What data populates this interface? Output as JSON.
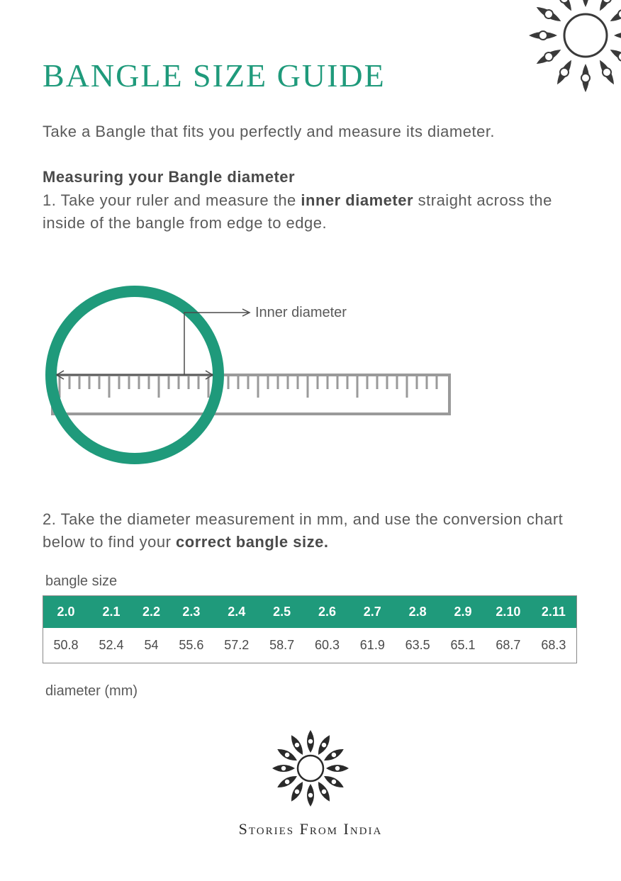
{
  "colors": {
    "accent": "#1f9a7b",
    "text": "#5a5a5a",
    "text_dark": "#4a4a4a",
    "ruler": "#9a9a9a",
    "white": "#ffffff",
    "table_border": "#888888",
    "ornament": "#3a3a3a"
  },
  "title": "BANGLE SIZE GUIDE",
  "intro": "Take a Bangle that fits you perfectly and measure its diameter.",
  "subhead": "Measuring your Bangle diameter",
  "step1_prefix": "1. Take your ruler and measure the ",
  "step1_bold": "inner diameter",
  "step1_suffix": " straight across the inside of the bangle from edge to edge.",
  "diagram": {
    "label": "Inner diameter",
    "ring_stroke_width": 16,
    "ring_color": "#1f9a7b",
    "ruler_color": "#9a9a9a"
  },
  "step2_prefix": "2. Take the diameter measurement in mm, and use the conversion chart below to find your ",
  "step2_bold": "correct bangle size.",
  "table": {
    "caption_top": "bangle size",
    "caption_bottom": "diameter (mm)",
    "header_bg": "#1f9a7b",
    "header_fg": "#ffffff",
    "sizes": [
      "2.0",
      "2.1",
      "2.2",
      "2.3",
      "2.4",
      "2.5",
      "2.6",
      "2.7",
      "2.8",
      "2.9",
      "2.10",
      "2.11"
    ],
    "diameters": [
      "50.8",
      "52.4",
      "54",
      "55.6",
      "57.2",
      "58.7",
      "60.3",
      "61.9",
      "63.5",
      "65.1",
      "68.7",
      "68.3"
    ]
  },
  "brand": "Stories From India"
}
